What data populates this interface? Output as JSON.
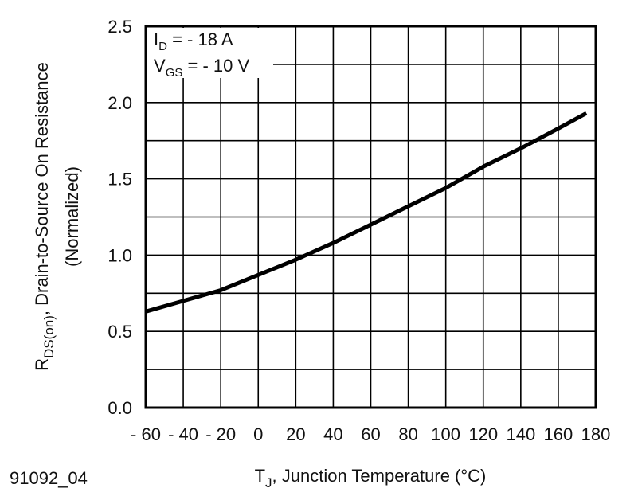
{
  "chart_data": {
    "type": "line",
    "xlabel": {
      "main": "T",
      "sub": "J",
      "rest": ", Junction Temperature (°C)"
    },
    "ylabel": {
      "main": "R",
      "sub": "DS(on)",
      "rest": ", Drain-to-Source On Resistance",
      "line2": "(Normalized)"
    },
    "annotations": [
      {
        "main": "I",
        "sub": "D",
        "rest": " = - 18 A"
      },
      {
        "main": "V",
        "sub": "GS",
        "rest": " = - 10 V"
      }
    ],
    "footnote": "91092_04",
    "x": [
      -60,
      -40,
      -20,
      0,
      20,
      40,
      60,
      80,
      100,
      120,
      140,
      160,
      175
    ],
    "series": [
      {
        "color": "#000000",
        "values": [
          0.63,
          0.7,
          0.77,
          0.87,
          0.97,
          1.08,
          1.2,
          1.32,
          1.44,
          1.58,
          1.7,
          1.83,
          1.93
        ]
      }
    ],
    "xlim": [
      -60,
      180
    ],
    "xticks": [
      {
        "value": -60,
        "label": "- 60"
      },
      {
        "value": -40,
        "label": "- 40"
      },
      {
        "value": -20,
        "label": "- 20"
      },
      0,
      20,
      40,
      60,
      80,
      100,
      120,
      140,
      160,
      180
    ],
    "ylim": [
      0,
      2.5
    ],
    "yticks": [
      {
        "value": 0,
        "label": "0.0"
      },
      0.5,
      {
        "value": 1,
        "label": "1.0"
      },
      1.5,
      {
        "value": 2,
        "label": "2.0"
      },
      2.5
    ],
    "y_minor_ticks": [
      0.25,
      0.75,
      1.25,
      1.75,
      2.25
    ],
    "grid": true
  }
}
